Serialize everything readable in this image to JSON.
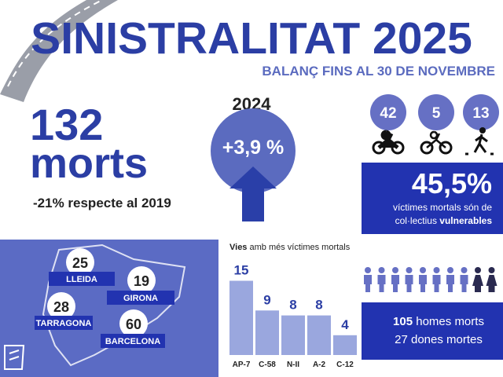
{
  "header": {
    "title": "SINISTRALITAT 2025",
    "subtitle": "BALANÇ FINS AL 30 DE NOVEMBRE"
  },
  "total": {
    "number": 132,
    "unit": "morts",
    "comparison": "-21% respecte al 2019"
  },
  "change": {
    "year": "2024",
    "value": "+3,9 %"
  },
  "vulnerable": {
    "counts": [
      42,
      5,
      13
    ],
    "share": "45,5%",
    "text_line1": "víctimes mortals són de",
    "text_line2": "col·lectius",
    "text_bold": "vulnerables"
  },
  "regions": [
    {
      "name": "LLEIDA",
      "value": 25
    },
    {
      "name": "GIRONA",
      "value": 19
    },
    {
      "name": "TARRAGONA",
      "value": 28
    },
    {
      "name": "BARCELONA",
      "value": 60
    }
  ],
  "chart_data": {
    "type": "bar",
    "title_bold": "Vies",
    "title_rest": "amb més víctimes mortals",
    "categories": [
      "AP-7",
      "C-58",
      "N-II",
      "A-2",
      "C-12"
    ],
    "values": [
      15,
      9,
      8,
      8,
      4
    ],
    "color": "#9aa7de"
  },
  "gender": {
    "men_count": 105,
    "men_label": "homes morts",
    "women_count": 27,
    "women_label": "dones mortes"
  }
}
